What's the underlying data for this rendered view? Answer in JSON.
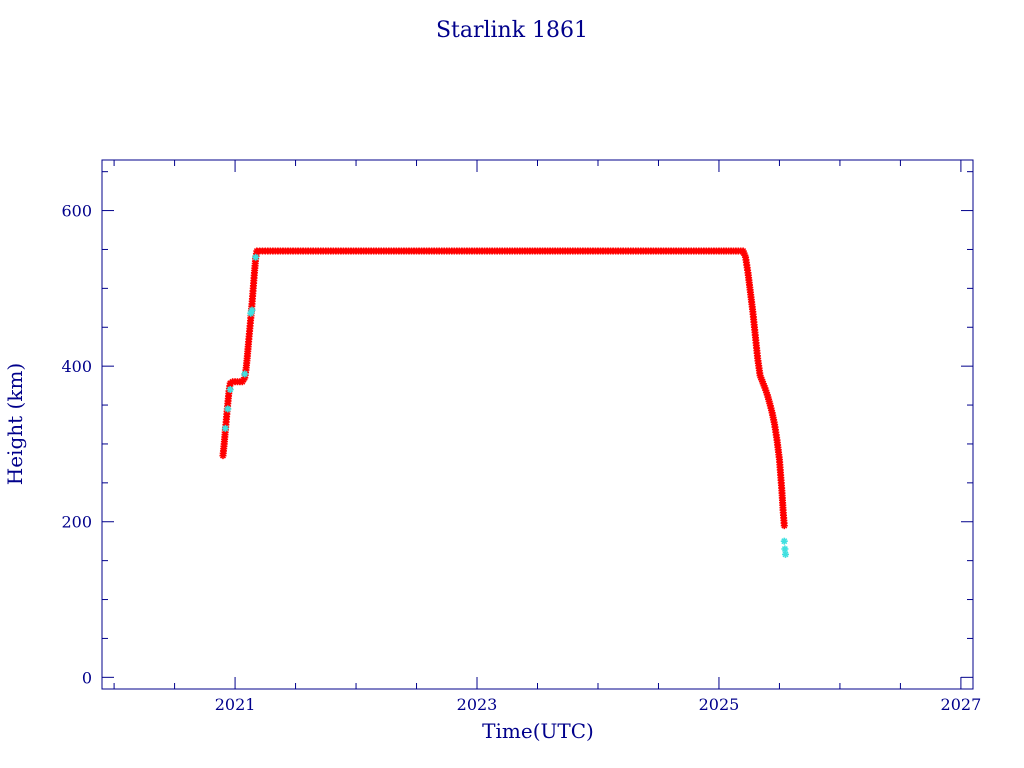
{
  "chart_data": {
    "type": "scatter",
    "title": "Starlink 1861",
    "xlabel": "Time(UTC)",
    "ylabel": "Height (km)",
    "xlim": [
      2019.9,
      2027.1
    ],
    "ylim": [
      -15,
      665
    ],
    "x_ticks": [
      {
        "value": 2021,
        "label": "2021"
      },
      {
        "value": 2023,
        "label": "2023"
      },
      {
        "value": 2025,
        "label": "2025"
      },
      {
        "value": 2027,
        "label": "2027"
      }
    ],
    "y_ticks": [
      {
        "value": 0,
        "label": "0"
      },
      {
        "value": 200,
        "label": "200"
      },
      {
        "value": 400,
        "label": "400"
      },
      {
        "value": 600,
        "label": "600"
      }
    ],
    "x_minor_step": 0.5,
    "y_minor_step": 50,
    "grid": false,
    "colors": {
      "main_series": "#ff0000",
      "secondary_series": "#40e0e0",
      "axis": "#00008b"
    },
    "series": [
      {
        "color": "#ff0000",
        "points": [
          [
            2020.9,
            285
          ],
          [
            2020.91,
            300
          ],
          [
            2020.92,
            318
          ],
          [
            2020.93,
            335
          ],
          [
            2020.94,
            352
          ],
          [
            2020.95,
            368
          ],
          [
            2020.96,
            378
          ],
          [
            2020.98,
            380
          ],
          [
            2021.0,
            380
          ],
          [
            2021.02,
            380
          ],
          [
            2021.04,
            380
          ],
          [
            2021.06,
            380
          ],
          [
            2021.08,
            385
          ],
          [
            2021.09,
            395
          ],
          [
            2021.1,
            410
          ],
          [
            2021.11,
            428
          ],
          [
            2021.12,
            445
          ],
          [
            2021.13,
            462
          ],
          [
            2021.14,
            480
          ],
          [
            2021.15,
            500
          ],
          [
            2021.16,
            520
          ],
          [
            2021.17,
            538
          ],
          [
            2021.18,
            548
          ],
          [
            2021.25,
            548
          ],
          [
            2021.5,
            548
          ],
          [
            2021.75,
            548
          ],
          [
            2022.0,
            548
          ],
          [
            2022.25,
            548
          ],
          [
            2022.5,
            548
          ],
          [
            2022.75,
            548
          ],
          [
            2023.0,
            548
          ],
          [
            2023.25,
            548
          ],
          [
            2023.5,
            548
          ],
          [
            2023.75,
            548
          ],
          [
            2024.0,
            548
          ],
          [
            2024.25,
            548
          ],
          [
            2024.5,
            548
          ],
          [
            2024.75,
            548
          ],
          [
            2025.0,
            548
          ],
          [
            2025.1,
            548
          ],
          [
            2025.2,
            548
          ],
          [
            2025.22,
            540
          ],
          [
            2025.24,
            520
          ],
          [
            2025.26,
            495
          ],
          [
            2025.28,
            470
          ],
          [
            2025.3,
            440
          ],
          [
            2025.32,
            410
          ],
          [
            2025.34,
            388
          ],
          [
            2025.36,
            380
          ],
          [
            2025.38,
            372
          ],
          [
            2025.4,
            363
          ],
          [
            2025.42,
            352
          ],
          [
            2025.44,
            340
          ],
          [
            2025.46,
            325
          ],
          [
            2025.48,
            305
          ],
          [
            2025.5,
            280
          ],
          [
            2025.51,
            260
          ],
          [
            2025.52,
            240
          ],
          [
            2025.53,
            215
          ],
          [
            2025.54,
            195
          ]
        ]
      },
      {
        "color": "#40e0e0",
        "points": [
          [
            2020.92,
            320
          ],
          [
            2020.94,
            345
          ],
          [
            2020.96,
            370
          ],
          [
            2021.08,
            390
          ],
          [
            2021.13,
            468
          ],
          [
            2021.14,
            472
          ],
          [
            2021.17,
            540
          ],
          [
            2025.54,
            175
          ],
          [
            2025.545,
            165
          ],
          [
            2025.55,
            158
          ]
        ]
      }
    ]
  }
}
